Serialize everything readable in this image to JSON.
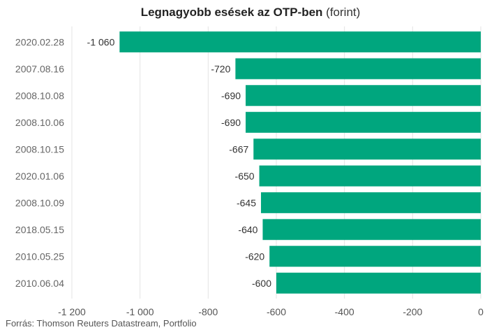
{
  "title": {
    "main": "Legnagyobb esések az OTP-ben",
    "unit": "(forint)"
  },
  "source": "Forrás: Thomson Reuters Datastream, Portfolio",
  "colors": {
    "bar": "#00a67e",
    "grid": "#e3e3e3",
    "text": "#333333",
    "category_text": "#666666",
    "axis_text": "#555555"
  },
  "chart_data": {
    "type": "bar",
    "orientation": "horizontal",
    "title": "Legnagyobb esések az OTP-ben (forint)",
    "categories": [
      "2020.02.28",
      "2007.08.16",
      "2008.10.08",
      "2008.10.06",
      "2008.10.15",
      "2020.01.06",
      "2008.10.09",
      "2018.05.15",
      "2010.05.25",
      "2010.06.04"
    ],
    "values": [
      -1060,
      -720,
      -690,
      -690,
      -667,
      -650,
      -645,
      -640,
      -620,
      -600
    ],
    "value_labels": [
      "-1 060",
      "-720",
      "-690",
      "-690",
      "-667",
      "-650",
      "-645",
      "-640",
      "-620",
      "-600"
    ],
    "xlim": [
      -1200,
      0
    ],
    "x_ticks": [
      -1200,
      -1000,
      -800,
      -600,
      -400,
      -200,
      0
    ],
    "x_tick_labels": [
      "-1 200",
      "-1 000",
      "-800",
      "-600",
      "-400",
      "-200",
      "0"
    ],
    "grid": true,
    "xlabel": "",
    "ylabel": ""
  }
}
